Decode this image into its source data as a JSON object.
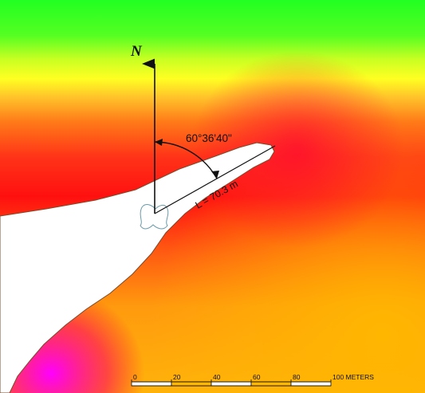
{
  "map": {
    "north_label": "N",
    "angle_label": "60°36'40\"",
    "length_label": "L = 70.3 m",
    "scale_ticks": [
      "0",
      "20",
      "40",
      "60",
      "80",
      "100 METERS"
    ],
    "colors": {
      "green": "#22ff22",
      "yellow": "#f8f820",
      "orange": "#ffa500",
      "red": "#ff1010",
      "magenta": "#ff00ff",
      "landform": "#ffffff",
      "outline": "#7a4a2a",
      "hole_outline": "#6a9aa8"
    }
  }
}
